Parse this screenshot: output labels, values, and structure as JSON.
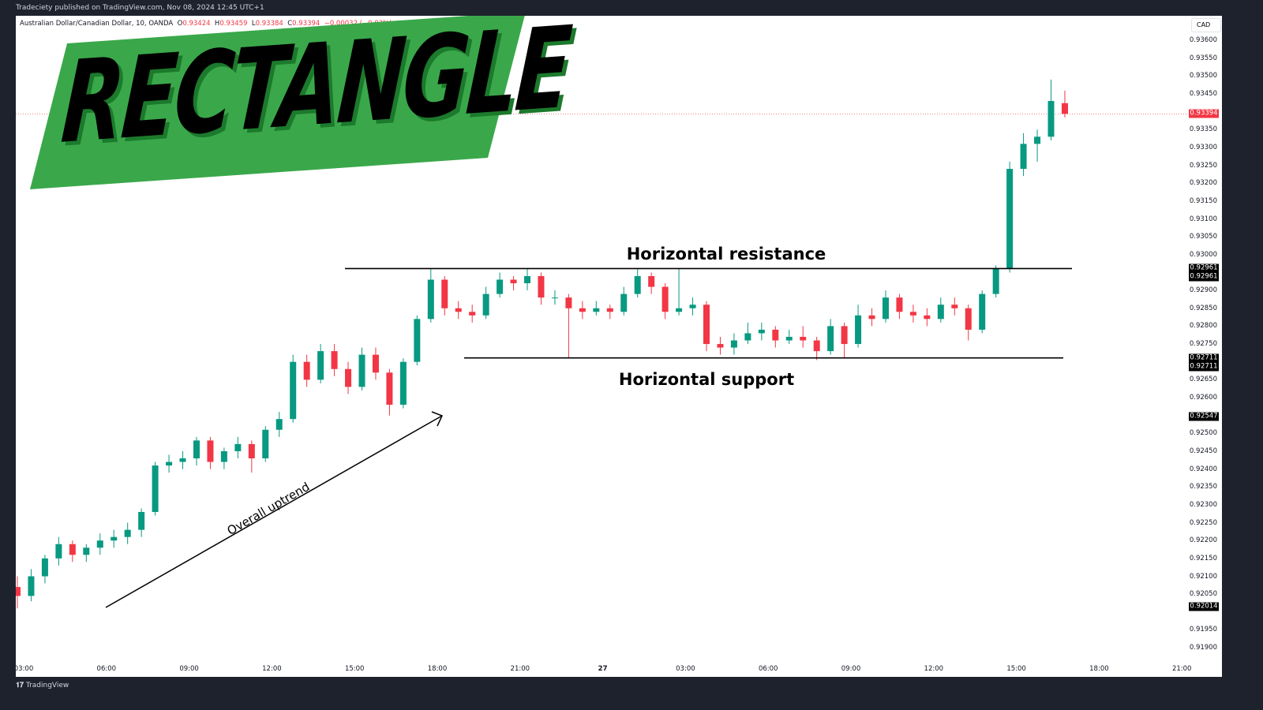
{
  "header": {
    "published": "Tradeciety published on TradingView.com, Nov 08, 2024 12:45 UTC+1"
  },
  "legend": {
    "symbol": "Australian Dollar/Canadian Dollar, 10, OANDA",
    "o_label": "O",
    "o": "0.93424",
    "h_label": "H",
    "h": "0.93459",
    "l_label": "L",
    "l": "0.93384",
    "c_label": "C",
    "c": "0.93394",
    "change": "−0.00032 (−0.03%)"
  },
  "banner": {
    "title": "RECTANGLE",
    "color": "#3aa84a"
  },
  "annotations": {
    "resistance": "Horizontal resistance",
    "support": "Horizontal support",
    "trend": "Overall uptrend"
  },
  "footer": {
    "brand": "TradingView"
  },
  "colors": {
    "up": "#089981",
    "down": "#f23645",
    "frame": "#1e222d"
  },
  "chart_data": {
    "type": "candlestick",
    "currency": "CAD",
    "ylim": [
      0.9188,
      0.9366
    ],
    "y_ticks": [
      "0.93600",
      "0.93550",
      "0.93500",
      "0.93450",
      "0.93350",
      "0.93300",
      "0.93250",
      "0.93200",
      "0.93150",
      "0.93100",
      "0.93050",
      "0.93000",
      "0.92900",
      "0.92850",
      "0.92800",
      "0.92750",
      "0.92650",
      "0.92600",
      "0.92500",
      "0.92450",
      "0.92400",
      "0.92350",
      "0.92300",
      "0.92250",
      "0.92200",
      "0.92150",
      "0.92100",
      "0.92050",
      "0.91950",
      "0.91900"
    ],
    "x_ticks": [
      "03:00",
      "06:00",
      "09:00",
      "12:00",
      "15:00",
      "18:00",
      "21:00",
      "27",
      "03:00",
      "06:00",
      "09:00",
      "12:00",
      "15:00",
      "18:00",
      "21:00"
    ],
    "price_labels": {
      "last": "0.93394",
      "resistance_a": "0.92961",
      "resistance_b": "0.92961",
      "support_a": "0.92711",
      "support_b": "0.92711",
      "mid": "0.92547",
      "low": "0.92014"
    },
    "resistance": 0.92961,
    "support": 0.92711,
    "candles": [
      [
        0.9207,
        0.921,
        0.9201,
        0.92045
      ],
      [
        0.92045,
        0.9212,
        0.9203,
        0.921
      ],
      [
        0.921,
        0.9216,
        0.9208,
        0.9215
      ],
      [
        0.9215,
        0.9221,
        0.9213,
        0.9219
      ],
      [
        0.9219,
        0.922,
        0.9214,
        0.9216
      ],
      [
        0.9216,
        0.9219,
        0.9214,
        0.9218
      ],
      [
        0.9218,
        0.9222,
        0.9216,
        0.922
      ],
      [
        0.922,
        0.9223,
        0.9218,
        0.9221
      ],
      [
        0.9221,
        0.9225,
        0.9219,
        0.9223
      ],
      [
        0.9223,
        0.9229,
        0.9221,
        0.9228
      ],
      [
        0.9228,
        0.9242,
        0.9227,
        0.9241
      ],
      [
        0.9241,
        0.9244,
        0.9239,
        0.9242
      ],
      [
        0.9242,
        0.9245,
        0.924,
        0.9243
      ],
      [
        0.9243,
        0.9249,
        0.9241,
        0.9248
      ],
      [
        0.9248,
        0.9249,
        0.924,
        0.9242
      ],
      [
        0.9242,
        0.9246,
        0.924,
        0.9245
      ],
      [
        0.9245,
        0.9249,
        0.9243,
        0.9247
      ],
      [
        0.9247,
        0.9248,
        0.9239,
        0.9243
      ],
      [
        0.9243,
        0.9252,
        0.9242,
        0.9251
      ],
      [
        0.9251,
        0.9256,
        0.9249,
        0.9254
      ],
      [
        0.9254,
        0.9272,
        0.9253,
        0.927
      ],
      [
        0.927,
        0.9272,
        0.9263,
        0.9265
      ],
      [
        0.9265,
        0.9275,
        0.9264,
        0.9273
      ],
      [
        0.9273,
        0.9275,
        0.9266,
        0.9268
      ],
      [
        0.9268,
        0.927,
        0.9261,
        0.9263
      ],
      [
        0.9263,
        0.9274,
        0.9262,
        0.9272
      ],
      [
        0.9272,
        0.9274,
        0.9265,
        0.9267
      ],
      [
        0.9267,
        0.9268,
        0.9255,
        0.9258
      ],
      [
        0.9258,
        0.9271,
        0.9257,
        0.927
      ],
      [
        0.927,
        0.9283,
        0.9269,
        0.9282
      ],
      [
        0.9282,
        0.92961,
        0.9281,
        0.9293
      ],
      [
        0.9293,
        0.9294,
        0.9283,
        0.9285
      ],
      [
        0.9285,
        0.9287,
        0.9282,
        0.9284
      ],
      [
        0.9284,
        0.9286,
        0.9281,
        0.9283
      ],
      [
        0.9283,
        0.9291,
        0.9282,
        0.9289
      ],
      [
        0.9289,
        0.9295,
        0.9288,
        0.9293
      ],
      [
        0.9293,
        0.9294,
        0.929,
        0.9292
      ],
      [
        0.9292,
        0.92961,
        0.929,
        0.9294
      ],
      [
        0.9294,
        0.9295,
        0.9286,
        0.9288
      ],
      [
        0.9288,
        0.929,
        0.9286,
        0.9288
      ],
      [
        0.9288,
        0.9289,
        0.92711,
        0.9285
      ],
      [
        0.9285,
        0.9287,
        0.9282,
        0.9284
      ],
      [
        0.9284,
        0.9287,
        0.9283,
        0.9285
      ],
      [
        0.9285,
        0.9286,
        0.9282,
        0.9284
      ],
      [
        0.9284,
        0.9291,
        0.9283,
        0.9289
      ],
      [
        0.9289,
        0.92961,
        0.9288,
        0.9294
      ],
      [
        0.9294,
        0.9295,
        0.9289,
        0.9291
      ],
      [
        0.9291,
        0.9292,
        0.9282,
        0.9284
      ],
      [
        0.9284,
        0.92961,
        0.9283,
        0.9285
      ],
      [
        0.9285,
        0.9288,
        0.9283,
        0.9286
      ],
      [
        0.9286,
        0.9287,
        0.9273,
        0.9275
      ],
      [
        0.9275,
        0.9277,
        0.9272,
        0.9274
      ],
      [
        0.9274,
        0.9278,
        0.9272,
        0.9276
      ],
      [
        0.9276,
        0.9281,
        0.9275,
        0.9278
      ],
      [
        0.9278,
        0.9281,
        0.9276,
        0.9279
      ],
      [
        0.9279,
        0.928,
        0.9274,
        0.9276
      ],
      [
        0.9276,
        0.9279,
        0.9275,
        0.9277
      ],
      [
        0.9277,
        0.928,
        0.9274,
        0.9276
      ],
      [
        0.9276,
        0.9277,
        0.92705,
        0.9273
      ],
      [
        0.9273,
        0.9282,
        0.9272,
        0.928
      ],
      [
        0.928,
        0.9281,
        0.92711,
        0.9275
      ],
      [
        0.9275,
        0.9286,
        0.9274,
        0.9283
      ],
      [
        0.9283,
        0.9285,
        0.928,
        0.9282
      ],
      [
        0.9282,
        0.929,
        0.9281,
        0.9288
      ],
      [
        0.9288,
        0.9289,
        0.9282,
        0.9284
      ],
      [
        0.9284,
        0.9286,
        0.9281,
        0.9283
      ],
      [
        0.9283,
        0.9285,
        0.928,
        0.9282
      ],
      [
        0.9282,
        0.9288,
        0.9281,
        0.9286
      ],
      [
        0.9286,
        0.9288,
        0.9283,
        0.9285
      ],
      [
        0.9285,
        0.9286,
        0.9276,
        0.9279
      ],
      [
        0.9279,
        0.929,
        0.9278,
        0.9289
      ],
      [
        0.9289,
        0.9297,
        0.9288,
        0.9296
      ],
      [
        0.9296,
        0.9326,
        0.9295,
        0.9324
      ],
      [
        0.9324,
        0.9334,
        0.9322,
        0.9331
      ],
      [
        0.9331,
        0.9335,
        0.9326,
        0.9333
      ],
      [
        0.9333,
        0.9349,
        0.9332,
        0.9343
      ],
      [
        0.93424,
        0.93459,
        0.93384,
        0.93394
      ]
    ]
  }
}
